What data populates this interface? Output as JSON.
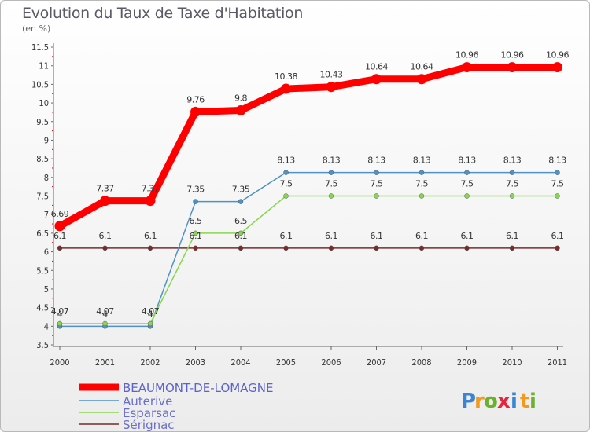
{
  "chart_data": {
    "type": "line",
    "title": "Evolution du Taux de Taxe d'Habitation",
    "subtitle": "(en %)",
    "x": [
      "2000",
      "2001",
      "2002",
      "2003",
      "2004",
      "2005",
      "2006",
      "2007",
      "2008",
      "2009",
      "2010",
      "2011"
    ],
    "ylim": [
      3.5,
      11.5
    ],
    "yticks": [
      "3.5",
      "4",
      "4.5",
      "5",
      "5.5",
      "6",
      "6.5",
      "7",
      "7.5",
      "8",
      "8.5",
      "9",
      "9.5",
      "10",
      "10.5",
      "11",
      "11.5"
    ],
    "grid": false,
    "legend": "bottom-left",
    "series": [
      {
        "name": "BEAUMONT-DE-LOMAGNE",
        "color": "#ff0000",
        "values": [
          6.69,
          7.37,
          7.37,
          9.76,
          9.8,
          10.38,
          10.43,
          10.64,
          10.64,
          10.96,
          10.96,
          10.96
        ],
        "labels": [
          "6.69",
          "7.37",
          "7.37",
          "9.76",
          "9.8",
          "10.38",
          "10.43",
          "10.64",
          "10.64",
          "10.96",
          "10.96",
          "10.96"
        ]
      },
      {
        "name": "Auterive",
        "color": "#4f92c6",
        "values": [
          4.0,
          4.0,
          4.0,
          7.35,
          7.35,
          8.13,
          8.13,
          8.13,
          8.13,
          8.13,
          8.13,
          8.13
        ],
        "labels": [
          "4",
          "4",
          "4",
          "7.35",
          "7.35",
          "8.13",
          "8.13",
          "8.13",
          "8.13",
          "8.13",
          "8.13",
          "8.13"
        ]
      },
      {
        "name": "Esparsac",
        "color": "#88d650",
        "values": [
          4.07,
          4.07,
          4.07,
          6.5,
          6.5,
          7.5,
          7.5,
          7.5,
          7.5,
          7.5,
          7.5,
          7.5
        ],
        "labels": [
          "4.07",
          "4.07",
          "4.07",
          "6.5",
          "6.5",
          "7.5",
          "7.5",
          "7.5",
          "7.5",
          "7.5",
          "7.5",
          "7.5"
        ]
      },
      {
        "name": "Sérignac",
        "color": "#7a2a2a",
        "values": [
          6.1,
          6.1,
          6.1,
          6.1,
          6.1,
          6.1,
          6.1,
          6.1,
          6.1,
          6.1,
          6.1,
          6.1
        ],
        "labels": [
          "6.1",
          "6.1",
          "6.1",
          "6.1",
          "6.1",
          "6.1",
          "6.1",
          "6.1",
          "6.1",
          "6.1",
          "6.1",
          "6.1"
        ]
      }
    ]
  },
  "brand": {
    "letters": [
      "P",
      "r",
      "o",
      "x",
      "i",
      "t",
      "i"
    ],
    "colors": [
      "#3a84d0",
      "#f39a1d",
      "#6ab22d",
      "#e6243b",
      "#3a84d0",
      "#f39a1d",
      "#6ab22d"
    ]
  }
}
